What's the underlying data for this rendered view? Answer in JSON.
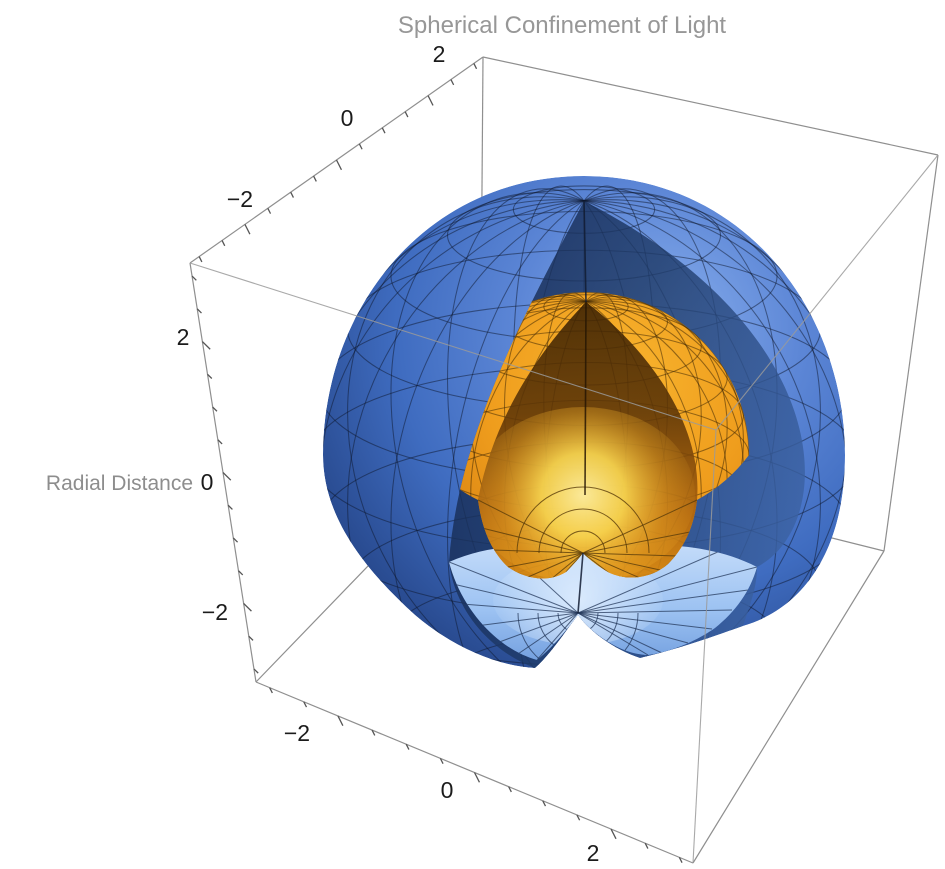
{
  "title": "Spherical Confinement of Light",
  "axes": {
    "vertical_label": "Radial Distance",
    "top": {
      "ticks": [
        "−2",
        "0",
        "2"
      ]
    },
    "left": {
      "ticks": [
        "2",
        "0",
        "−2"
      ]
    },
    "bottom": {
      "ticks": [
        "−2",
        "0",
        "2"
      ]
    }
  },
  "colors": {
    "background": "#ffffff",
    "title_text": "#979797",
    "axis_label_text": "#8d8d8d",
    "tick_label_text": "#1b1b1b",
    "box_edge": "#8f8f8f",
    "outer_sphere_light": "#8ab0ee",
    "outer_sphere_mid": "#3f6cc0",
    "outer_sphere_dark": "#1a3368",
    "outer_sphere_interior": "#14264c",
    "outer_sphere_inner_bottom": "#9cc2f2",
    "inner_sphere_light": "#f8b42e",
    "inner_sphere_mid": "#ef9d1d",
    "inner_sphere_dark": "#b96c0c",
    "inner_sphere_interior": "#3a2103",
    "inner_sphere_glow": "#ffe24e"
  },
  "chart_data": {
    "type": "3d-surface",
    "title": "Spherical Confinement of Light",
    "z_axis_label": "Radial Distance",
    "axis_ticks": {
      "x": [
        -2,
        0,
        2
      ],
      "y": [
        -2,
        0,
        2
      ],
      "z": [
        -2,
        0,
        2
      ]
    },
    "axis_range": [
      -3.2,
      3.2
    ],
    "projection": "perspective, elevated viewpoint (~20°), cutaway octant facing viewer",
    "grid_mesh_degrees": 15,
    "legend": false,
    "surfaces": [
      {
        "name": "outer sphere",
        "radius": 3,
        "color_scheme": "blue",
        "style": "shaded wireframe",
        "cutaway": true
      },
      {
        "name": "inner sphere",
        "radius": 1.8,
        "color_scheme": "orange",
        "style": "shaded wireframe",
        "cutaway": true
      }
    ]
  }
}
